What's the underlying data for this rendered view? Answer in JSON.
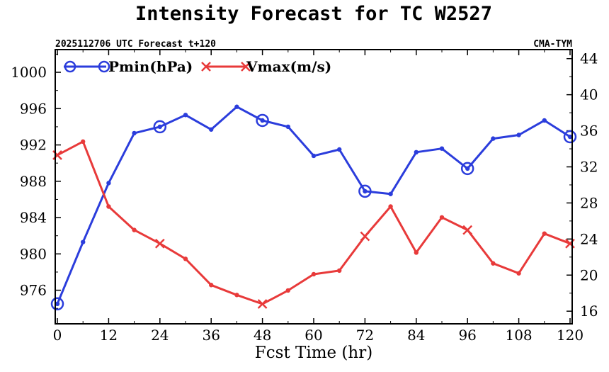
{
  "chart_data": {
    "type": "line",
    "title": "Intensity Forecast for TC W2527",
    "subtitle_left": "2025112706 UTC Forecast t+120",
    "subtitle_right": "CMA-TYM",
    "xlabel": "Fcst Time (hr)",
    "x": [
      0,
      6,
      12,
      18,
      24,
      30,
      36,
      42,
      48,
      54,
      60,
      66,
      72,
      78,
      84,
      90,
      96,
      102,
      108,
      114,
      120
    ],
    "xlim": [
      -0.5,
      120.5
    ],
    "xticks": [
      0,
      12,
      24,
      36,
      48,
      60,
      72,
      84,
      96,
      108,
      120
    ],
    "xtick_labels": [
      "0",
      "12",
      "24",
      "36",
      "48",
      "60",
      "72",
      "84",
      "96",
      "108",
      "120"
    ],
    "left_axis": {
      "ylim": [
        972.3,
        1002.5
      ],
      "ticks": [
        976,
        980,
        984,
        988,
        992,
        996,
        1000
      ],
      "tick_labels": [
        "976",
        "980",
        "984",
        "988",
        "992",
        "996",
        "1000"
      ]
    },
    "right_axis": {
      "ylim": [
        14.6,
        45
      ],
      "ticks": [
        16,
        20,
        24,
        28,
        32,
        36,
        40,
        44
      ],
      "tick_labels": [
        "16",
        "20",
        "24",
        "28",
        "32",
        "36",
        "40",
        "44"
      ]
    },
    "series": [
      {
        "name": "Pmin(hPa)",
        "axis": "left",
        "color": "#2b3ddc",
        "marker": "circle",
        "values": [
          974.5,
          981.3,
          987.8,
          993.3,
          994.0,
          995.3,
          993.7,
          996.2,
          994.7,
          994.0,
          990.8,
          991.5,
          986.9,
          986.6,
          991.2,
          991.6,
          989.4,
          992.7,
          993.1,
          994.7,
          992.9
        ]
      },
      {
        "name": "Vmax(m/s)",
        "axis": "right",
        "color": "#e83a3a",
        "marker": "x",
        "values": [
          33.3,
          34.8,
          27.6,
          25.0,
          23.5,
          21.8,
          18.9,
          17.8,
          16.8,
          18.3,
          20.1,
          20.5,
          24.3,
          27.6,
          22.5,
          26.4,
          25.0,
          21.3,
          20.2,
          24.6,
          23.5
        ]
      }
    ],
    "legend_position": "top-left"
  }
}
